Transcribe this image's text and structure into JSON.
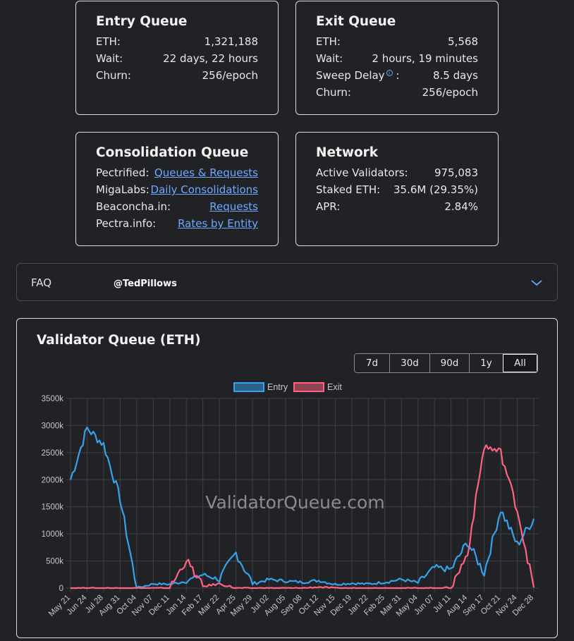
{
  "entry_queue": {
    "title": "Entry Queue",
    "rows": [
      {
        "label": "ETH:",
        "value": "1,321,188"
      },
      {
        "label": "Wait:",
        "value": "22 days, 22 hours"
      },
      {
        "label": "Churn:",
        "value": "256/epoch"
      }
    ]
  },
  "exit_queue": {
    "title": "Exit Queue",
    "rows": [
      {
        "label": "ETH:",
        "value": "5,568"
      },
      {
        "label": "Wait:",
        "value": "2 hours, 19 minutes"
      },
      {
        "label": "Sweep Delay",
        "info_icon": "info-icon",
        "suffix": ":",
        "value": "8.5 days"
      },
      {
        "label": "Churn:",
        "value": "256/epoch"
      }
    ]
  },
  "consolidation_queue": {
    "title": "Consolidation Queue",
    "rows": [
      {
        "label": "Pectrified:",
        "link": "Queues & Requests"
      },
      {
        "label": "MigaLabs:",
        "link": "Daily Consolidations"
      },
      {
        "label": "Beaconcha.in:",
        "link": "Requests"
      },
      {
        "label": "Pectra.info:",
        "link": "Rates by Entity"
      }
    ]
  },
  "network": {
    "title": "Network",
    "rows": [
      {
        "label": "Active Validators:",
        "value": "975,083"
      },
      {
        "label": "Staked ETH:",
        "value": "35.6M (29.35%)"
      },
      {
        "label": "APR:",
        "value": "2.84%"
      }
    ]
  },
  "faq": {
    "label": "FAQ",
    "handle": "@TedPillows",
    "icon": "chevron-down-icon"
  },
  "chart_card": {
    "title": "Validator Queue (ETH)",
    "range_buttons": [
      "7d",
      "30d",
      "90d",
      "1y",
      "All"
    ],
    "active_range": "All",
    "watermark": "ValidatorQueue.com"
  },
  "colors": {
    "entry": "#36a2eb",
    "exit": "#ff6384",
    "link": "#6ea8fe",
    "background": "#212226"
  },
  "chart_data": {
    "type": "line",
    "title": "Validator Queue (ETH)",
    "xlabel": "",
    "ylabel": "",
    "ylim": [
      0,
      3500
    ],
    "y_unit": "k ETH",
    "yticks": [
      "0",
      "500k",
      "1000k",
      "1500k",
      "2000k",
      "2500k",
      "3000k",
      "3500k"
    ],
    "legend_position": "top-center",
    "grid": true,
    "categories": [
      "May 21",
      "Jun 24",
      "Jul 28",
      "Aug 31",
      "Oct 04",
      "Nov 07",
      "Dec 11",
      "Jan 14",
      "Feb 17",
      "Mar 22",
      "Apr 25",
      "May 29",
      "Jul 02",
      "Aug 05",
      "Sep 08",
      "Oct 12",
      "Nov 15",
      "Dec 19",
      "Jan 22",
      "Feb 25",
      "Mar 31",
      "May 04",
      "Jun 07",
      "Jul 11",
      "Aug 14",
      "Sep 17",
      "Oct 21",
      "Nov 24",
      "Dec 28"
    ],
    "series": [
      {
        "name": "Entry",
        "values": [
          2000,
          2950,
          2650,
          1650,
          0,
          80,
          70,
          130,
          250,
          160,
          650,
          80,
          160,
          130,
          110,
          140,
          70,
          90,
          75,
          110,
          160,
          100,
          380,
          340,
          850,
          280,
          1450,
          800,
          1280
        ]
      },
      {
        "name": "Exit",
        "values": [
          0,
          0,
          0,
          0,
          0,
          0,
          0,
          520,
          30,
          80,
          0,
          0,
          0,
          0,
          0,
          20,
          0,
          0,
          0,
          0,
          0,
          0,
          0,
          10,
          640,
          2620,
          2500,
          1450,
          10
        ]
      }
    ]
  }
}
